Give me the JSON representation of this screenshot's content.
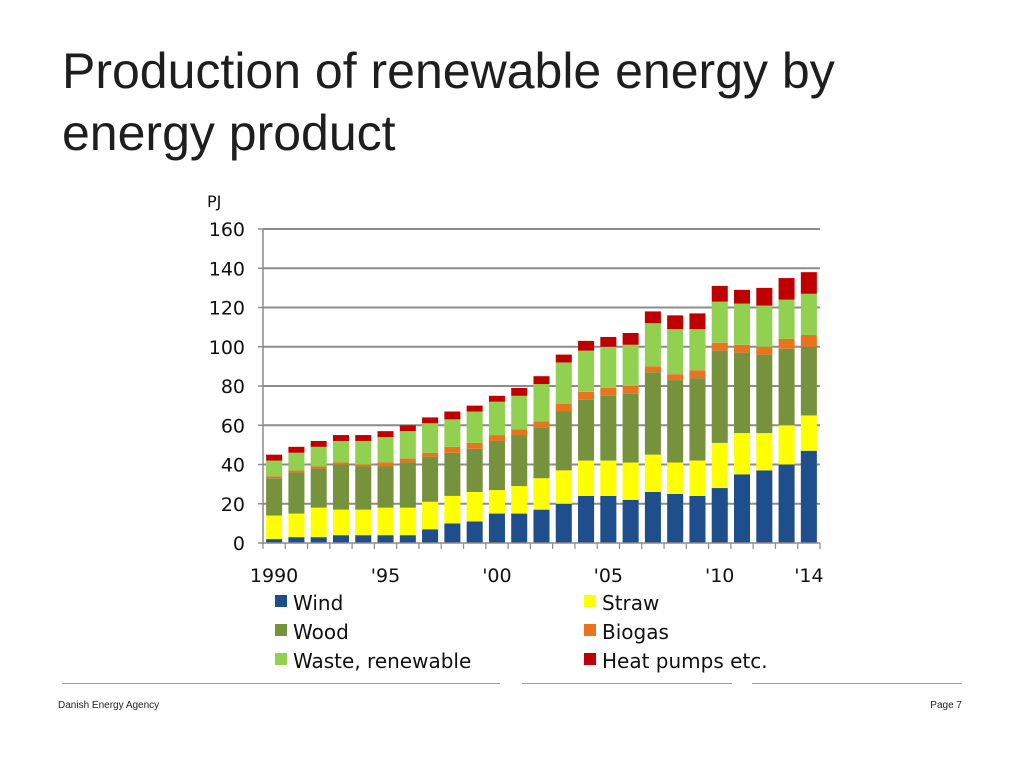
{
  "page": {
    "title": "Production of renewable energy by energy product",
    "footer_left": "Danish Energy Agency",
    "footer_right": "Page 7"
  },
  "chart_data": {
    "type": "bar",
    "stacked": true,
    "title": "Production of renewable energy by energy product",
    "ylabel": "PJ",
    "xlabel": "",
    "ylim": [
      0,
      160
    ],
    "yticks": [
      0,
      20,
      40,
      60,
      80,
      100,
      120,
      140,
      160
    ],
    "grid": true,
    "legend_position": "bottom",
    "categories": [
      1990,
      1991,
      1992,
      1993,
      1994,
      1995,
      1996,
      1997,
      1998,
      1999,
      2000,
      2001,
      2002,
      2003,
      2004,
      2005,
      2006,
      2007,
      2008,
      2009,
      2010,
      2011,
      2012,
      2013,
      2014
    ],
    "x_tick_labels": [
      {
        "category": 1990,
        "label": "1990"
      },
      {
        "category": 1995,
        "label": "'95"
      },
      {
        "category": 2000,
        "label": "'00"
      },
      {
        "category": 2005,
        "label": "'05"
      },
      {
        "category": 2010,
        "label": "'10"
      },
      {
        "category": 2014,
        "label": "'14"
      }
    ],
    "series": [
      {
        "name": "Wind",
        "color": "#1f4e8c",
        "values": [
          2,
          3,
          3,
          4,
          4,
          4,
          4,
          7,
          10,
          11,
          15,
          15,
          17,
          20,
          24,
          24,
          22,
          26,
          25,
          24,
          28,
          35,
          37,
          40,
          47
        ]
      },
      {
        "name": "Straw",
        "color": "#ffff00",
        "values": [
          12,
          12,
          15,
          13,
          13,
          14,
          14,
          14,
          14,
          15,
          12,
          14,
          16,
          17,
          18,
          18,
          19,
          19,
          16,
          18,
          23,
          21,
          19,
          20,
          18
        ]
      },
      {
        "name": "Wood",
        "color": "#77923c",
        "values": [
          19,
          21,
          20,
          23,
          22,
          21,
          23,
          23,
          22,
          22,
          25,
          26,
          26,
          30,
          31,
          33,
          35,
          42,
          42,
          42,
          47,
          41,
          40,
          39,
          35
        ]
      },
      {
        "name": "Biogas",
        "color": "#e8741f",
        "values": [
          1,
          1,
          1,
          1,
          1,
          2,
          2,
          2,
          3,
          3,
          3,
          3,
          3,
          4,
          4,
          4,
          4,
          3,
          3,
          4,
          4,
          4,
          4,
          5,
          6
        ]
      },
      {
        "name": "Waste, renewable",
        "color": "#92d050",
        "values": [
          8,
          9,
          10,
          11,
          12,
          13,
          14,
          15,
          14,
          16,
          17,
          17,
          19,
          21,
          21,
          21,
          21,
          22,
          23,
          21,
          21,
          21,
          21,
          20,
          21
        ]
      },
      {
        "name": "Heat pumps etc.",
        "color": "#c00000",
        "values": [
          3,
          3,
          3,
          3,
          3,
          3,
          3,
          3,
          4,
          3,
          3,
          4,
          4,
          4,
          5,
          5,
          6,
          6,
          7,
          8,
          8,
          7,
          9,
          11,
          11
        ]
      }
    ]
  }
}
